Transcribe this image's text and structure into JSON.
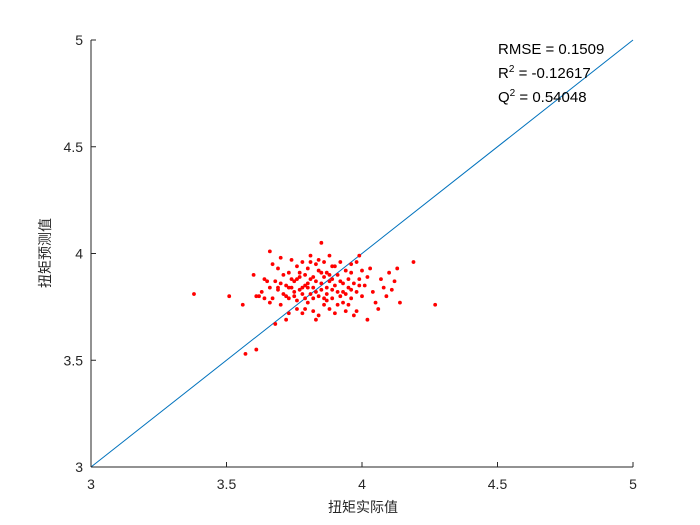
{
  "chart_data": {
    "type": "scatter",
    "xlabel": "扭矩实际值",
    "ylabel": "扭矩预测值",
    "xlim": [
      3,
      5
    ],
    "ylim": [
      3,
      5
    ],
    "xticks": [
      3,
      3.5,
      4,
      4.5,
      5
    ],
    "yticks": [
      3,
      3.5,
      4,
      4.5,
      5
    ],
    "xtick_labels": [
      "3",
      "3.5",
      "4",
      "4.5",
      "5"
    ],
    "ytick_labels": [
      "3",
      "3.5",
      "4",
      "4.5",
      "5"
    ],
    "grid": false,
    "reference_line": {
      "x": [
        3,
        5
      ],
      "y": [
        3,
        5
      ],
      "color": "#0072BD"
    },
    "marker_color": "#ff0000",
    "annotations": [
      {
        "label": "RMSE = 0.1509"
      },
      {
        "prefix": "R",
        "sup": "2",
        "suffix": " = -0.12617"
      },
      {
        "prefix": "Q",
        "sup": "2",
        "suffix": " = 0.54048"
      }
    ],
    "points": [
      [
        3.38,
        3.81
      ],
      [
        3.51,
        3.8
      ],
      [
        3.56,
        3.76
      ],
      [
        3.57,
        3.53
      ],
      [
        3.6,
        3.9
      ],
      [
        3.61,
        3.55
      ],
      [
        3.61,
        3.8
      ],
      [
        3.62,
        3.8
      ],
      [
        3.63,
        3.82
      ],
      [
        3.64,
        3.79
      ],
      [
        3.64,
        3.88
      ],
      [
        3.65,
        3.87
      ],
      [
        3.66,
        4.01
      ],
      [
        3.66,
        3.77
      ],
      [
        3.67,
        3.95
      ],
      [
        3.67,
        3.79
      ],
      [
        3.68,
        3.67
      ],
      [
        3.68,
        3.87
      ],
      [
        3.69,
        3.84
      ],
      [
        3.69,
        3.83
      ],
      [
        3.7,
        3.86
      ],
      [
        3.7,
        3.98
      ],
      [
        3.71,
        3.9
      ],
      [
        3.71,
        3.81
      ],
      [
        3.72,
        3.8
      ],
      [
        3.72,
        3.85
      ],
      [
        3.73,
        3.91
      ],
      [
        3.73,
        3.79
      ],
      [
        3.73,
        3.72
      ],
      [
        3.74,
        3.84
      ],
      [
        3.74,
        3.97
      ],
      [
        3.75,
        3.87
      ],
      [
        3.75,
        3.82
      ],
      [
        3.75,
        3.8
      ],
      [
        3.76,
        3.94
      ],
      [
        3.76,
        3.88
      ],
      [
        3.76,
        3.74
      ],
      [
        3.77,
        3.91
      ],
      [
        3.77,
        3.83
      ],
      [
        3.77,
        3.89
      ],
      [
        3.78,
        3.96
      ],
      [
        3.78,
        3.84
      ],
      [
        3.78,
        3.72
      ],
      [
        3.79,
        3.79
      ],
      [
        3.79,
        3.85
      ],
      [
        3.79,
        3.9
      ],
      [
        3.8,
        3.86
      ],
      [
        3.8,
        3.77
      ],
      [
        3.8,
        3.93
      ],
      [
        3.81,
        3.99
      ],
      [
        3.81,
        3.81
      ],
      [
        3.81,
        3.88
      ],
      [
        3.82,
        3.73
      ],
      [
        3.82,
        3.84
      ],
      [
        3.82,
        3.79
      ],
      [
        3.83,
        3.95
      ],
      [
        3.83,
        3.87
      ],
      [
        3.83,
        3.82
      ],
      [
        3.84,
        3.8
      ],
      [
        3.84,
        3.92
      ],
      [
        3.84,
        3.71
      ],
      [
        3.85,
        4.05
      ],
      [
        3.85,
        3.86
      ],
      [
        3.85,
        3.83
      ],
      [
        3.86,
        3.96
      ],
      [
        3.86,
        3.76
      ],
      [
        3.86,
        3.89
      ],
      [
        3.87,
        3.84
      ],
      [
        3.87,
        3.81
      ],
      [
        3.87,
        3.91
      ],
      [
        3.88,
        3.87
      ],
      [
        3.88,
        3.74
      ],
      [
        3.88,
        3.99
      ],
      [
        3.89,
        3.83
      ],
      [
        3.89,
        3.88
      ],
      [
        3.89,
        3.79
      ],
      [
        3.9,
        3.94
      ],
      [
        3.9,
        3.85
      ],
      [
        3.9,
        3.72
      ],
      [
        3.91,
        3.82
      ],
      [
        3.91,
        3.9
      ],
      [
        3.92,
        3.96
      ],
      [
        3.92,
        3.8
      ],
      [
        3.93,
        3.86
      ],
      [
        3.93,
        3.77
      ],
      [
        3.94,
        3.92
      ],
      [
        3.94,
        3.81
      ],
      [
        3.94,
        3.73
      ],
      [
        3.95,
        3.88
      ],
      [
        3.95,
        3.84
      ],
      [
        3.96,
        3.79
      ],
      [
        3.96,
        3.95
      ],
      [
        3.97,
        3.71
      ],
      [
        3.97,
        3.86
      ],
      [
        3.98,
        3.82
      ],
      [
        3.99,
        3.99
      ],
      [
        3.99,
        3.88
      ],
      [
        4.0,
        3.8
      ],
      [
        4.0,
        3.92
      ],
      [
        4.01,
        3.85
      ],
      [
        4.02,
        3.69
      ],
      [
        4.02,
        3.89
      ],
      [
        4.03,
        3.93
      ],
      [
        4.04,
        3.82
      ],
      [
        4.05,
        3.77
      ],
      [
        4.06,
        3.74
      ],
      [
        4.07,
        3.88
      ],
      [
        4.08,
        3.84
      ],
      [
        4.09,
        3.8
      ],
      [
        4.1,
        3.91
      ],
      [
        4.11,
        3.83
      ],
      [
        4.12,
        3.87
      ],
      [
        4.13,
        3.93
      ],
      [
        4.14,
        3.77
      ],
      [
        4.19,
        3.96
      ],
      [
        4.27,
        3.76
      ],
      [
        3.7,
        3.76
      ],
      [
        3.72,
        3.69
      ],
      [
        3.79,
        3.74
      ],
      [
        3.83,
        3.69
      ],
      [
        3.87,
        3.78
      ],
      [
        3.91,
        3.76
      ],
      [
        3.95,
        3.76
      ],
      [
        3.98,
        3.73
      ],
      [
        3.99,
        3.85
      ],
      [
        3.93,
        3.82
      ],
      [
        3.85,
        3.91
      ],
      [
        3.8,
        3.84
      ],
      [
        3.76,
        3.78
      ],
      [
        3.69,
        3.93
      ],
      [
        3.78,
        3.81
      ],
      [
        3.82,
        3.89
      ],
      [
        3.86,
        3.79
      ],
      [
        3.89,
        3.94
      ],
      [
        3.92,
        3.87
      ],
      [
        3.96,
        3.91
      ],
      [
        3.98,
        3.96
      ],
      [
        3.96,
        3.83
      ],
      [
        3.73,
        3.84
      ],
      [
        3.66,
        3.84
      ],
      [
        3.74,
        3.88
      ],
      [
        3.81,
        3.96
      ],
      [
        3.84,
        3.97
      ],
      [
        3.88,
        3.9
      ]
    ]
  }
}
